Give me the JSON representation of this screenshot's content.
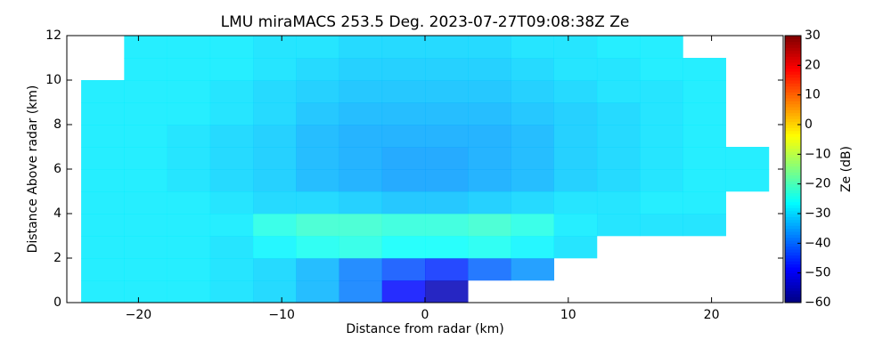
{
  "chart_data": {
    "type": "heatmap",
    "title": "LMU miraMACS 253.5 Deg. 2023-07-27T09:08:38Z  Ze",
    "x_label": "Distance from radar (km)",
    "y_label": "Distance Above radar  (km)",
    "colorbar_label": "Ze (dB)",
    "colormap": "jet",
    "xbins": [
      -24,
      -21,
      -18,
      -15,
      -12,
      -9,
      -6,
      -3,
      0,
      3,
      6,
      9,
      12,
      15,
      18,
      21,
      24
    ],
    "ybins": [
      0,
      1,
      2,
      3,
      4,
      5,
      6,
      7,
      8,
      9,
      10,
      11,
      12
    ],
    "z": [
      [
        -28,
        -28,
        -28,
        -29,
        -30,
        -33,
        -38,
        -48,
        -55,
        null,
        null,
        null,
        null,
        null,
        null,
        null
      ],
      [
        -28,
        -28,
        -28,
        -29,
        -30,
        -33,
        -38,
        -42,
        -45,
        -40,
        -36,
        null,
        null,
        null,
        null,
        null
      ],
      [
        -28,
        -28,
        -28,
        -29,
        -27,
        -25,
        -24,
        -26,
        -26,
        -25,
        -27,
        -29,
        null,
        null,
        null,
        null
      ],
      [
        -28,
        -28,
        -28,
        -28,
        -24,
        -22,
        -22,
        -23,
        -23,
        -22,
        -24,
        -28,
        -29,
        -29,
        -29,
        null
      ],
      [
        -28,
        -28,
        -28,
        -29,
        -30,
        -30,
        -31,
        -32,
        -32,
        -31,
        -30,
        -29,
        -29,
        -28,
        -28,
        null
      ],
      [
        -28,
        -28,
        -29,
        -30,
        -31,
        -33,
        -34,
        -35,
        -35,
        -34,
        -33,
        -31,
        -30,
        -29,
        -28,
        -28
      ],
      [
        -28,
        -28,
        -29,
        -30,
        -31,
        -33,
        -34,
        -35,
        -35,
        -34,
        -33,
        -31,
        -30,
        -29,
        -28,
        -28
      ],
      [
        -28,
        -28,
        -29,
        -30,
        -31,
        -33,
        -34,
        -34,
        -34,
        -34,
        -33,
        -31,
        -30,
        -29,
        -28,
        null
      ],
      [
        -28,
        -28,
        -28,
        -29,
        -30,
        -32,
        -33,
        -33,
        -33,
        -33,
        -32,
        -31,
        -30,
        -29,
        -28,
        null
      ],
      [
        -28,
        -28,
        -28,
        -29,
        -30,
        -31,
        -32,
        -32,
        -32,
        -32,
        -31,
        -30,
        -29,
        -29,
        -28,
        null
      ],
      [
        null,
        -28,
        -28,
        -28,
        -29,
        -30,
        -31,
        -31,
        -31,
        -31,
        -30,
        -29,
        -29,
        -28,
        -28,
        null
      ],
      [
        null,
        -28,
        -28,
        -28,
        -29,
        -29,
        -30,
        -30,
        -30,
        -30,
        -29,
        -29,
        -28,
        -28,
        null,
        null
      ]
    ],
    "xlim": [
      -25,
      25
    ],
    "xticks": [
      {
        "value": -20,
        "label": "−20"
      },
      {
        "value": -10,
        "label": "−10"
      },
      0,
      10,
      20
    ],
    "ylim": [
      0,
      12
    ],
    "yticks": [
      0,
      2,
      4,
      6,
      8,
      10,
      12
    ],
    "clim": [
      -60,
      30
    ],
    "cticks": [
      {
        "value": -60,
        "label": "−60"
      },
      {
        "value": -50,
        "label": "−50"
      },
      {
        "value": -40,
        "label": "−40"
      },
      {
        "value": -30,
        "label": "−30"
      },
      {
        "value": -20,
        "label": "−20"
      },
      {
        "value": -10,
        "label": "−10"
      },
      0,
      10,
      20,
      30
    ]
  }
}
